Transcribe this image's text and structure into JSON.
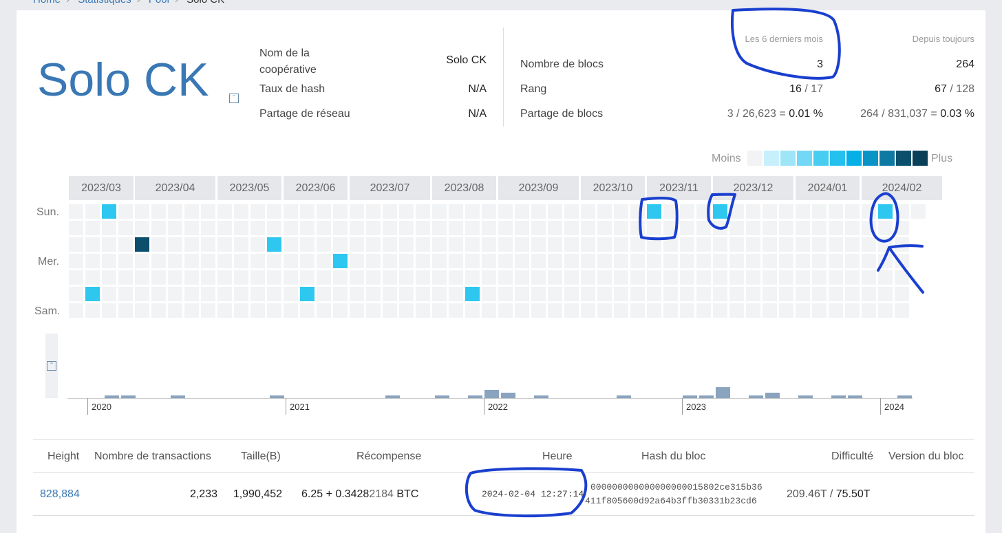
{
  "breadcrumb": [
    "Home",
    "Statistiques",
    "Pool",
    "Solo CK"
  ],
  "pool": {
    "name": "Solo CK",
    "labels": {
      "coop_name": "Nom de la\ncoopérative",
      "hash_rate": "Taux de hash",
      "network_share": "Partage de réseau",
      "blocks_count": "Nombre de blocs",
      "rank": "Rang",
      "blocks_share": "Partage de blocs"
    },
    "values": {
      "coop_name": "Solo CK",
      "hash_rate": "N/A",
      "network_share": "N/A"
    },
    "columns": {
      "last6": "Les 6 derniers mois",
      "alltime": "Depuis toujours"
    },
    "last6": {
      "blocks": "3",
      "rank": "16",
      "rank_total": "/ 17",
      "share_num": "3 / 26,623 =",
      "share_pct": "0.01 %"
    },
    "alltime": {
      "blocks": "264",
      "rank": "67",
      "rank_total": "/ 128",
      "share_num": "264 / 831,037 =",
      "share_pct": "0.03 %"
    }
  },
  "heatmap": {
    "legend_less": "Moins",
    "legend_more": "Plus",
    "legend_colors": [
      "#f2f3f5",
      "#c6f0fb",
      "#9fe5f8",
      "#72d8f5",
      "#48cdf2",
      "#25c1ee",
      "#06b0e6",
      "#0a94c6",
      "#0e7aa3",
      "#0b4f6c",
      "#0a3f58"
    ],
    "months": [
      "2023/03",
      "2023/04",
      "2023/05",
      "2023/06",
      "2023/07",
      "2023/08",
      "2023/09",
      "2023/10",
      "2023/11",
      "2023/12",
      "2024/01",
      "2024/02"
    ],
    "day_labels": [
      "Sun.",
      "Mer.",
      "Sam."
    ]
  },
  "timeline": {
    "years": [
      "2020",
      "2021",
      "2022",
      "2023",
      "2024"
    ]
  },
  "table": {
    "headers": [
      "Height",
      "Nombre de transactions",
      "Taille(B)",
      "Récompense",
      "Heure",
      "Hash du bloc",
      "Difficulté",
      "Version du bloc"
    ],
    "rows": [
      {
        "height": "828,884",
        "tx_count": "2,233",
        "size": "1,990,452",
        "reward_main": "6.25 + 0.3428",
        "reward_muted": "2184",
        "reward_unit": "BTC",
        "time": "2024-02-04 12:27:14",
        "hash_line1": "000000000000000000015802ce315b36",
        "hash_line2": "411f805600d92a64b3ffb30331b23cd6",
        "difficulty_muted": "209.46T /",
        "difficulty_main": "75.50T"
      }
    ]
  }
}
